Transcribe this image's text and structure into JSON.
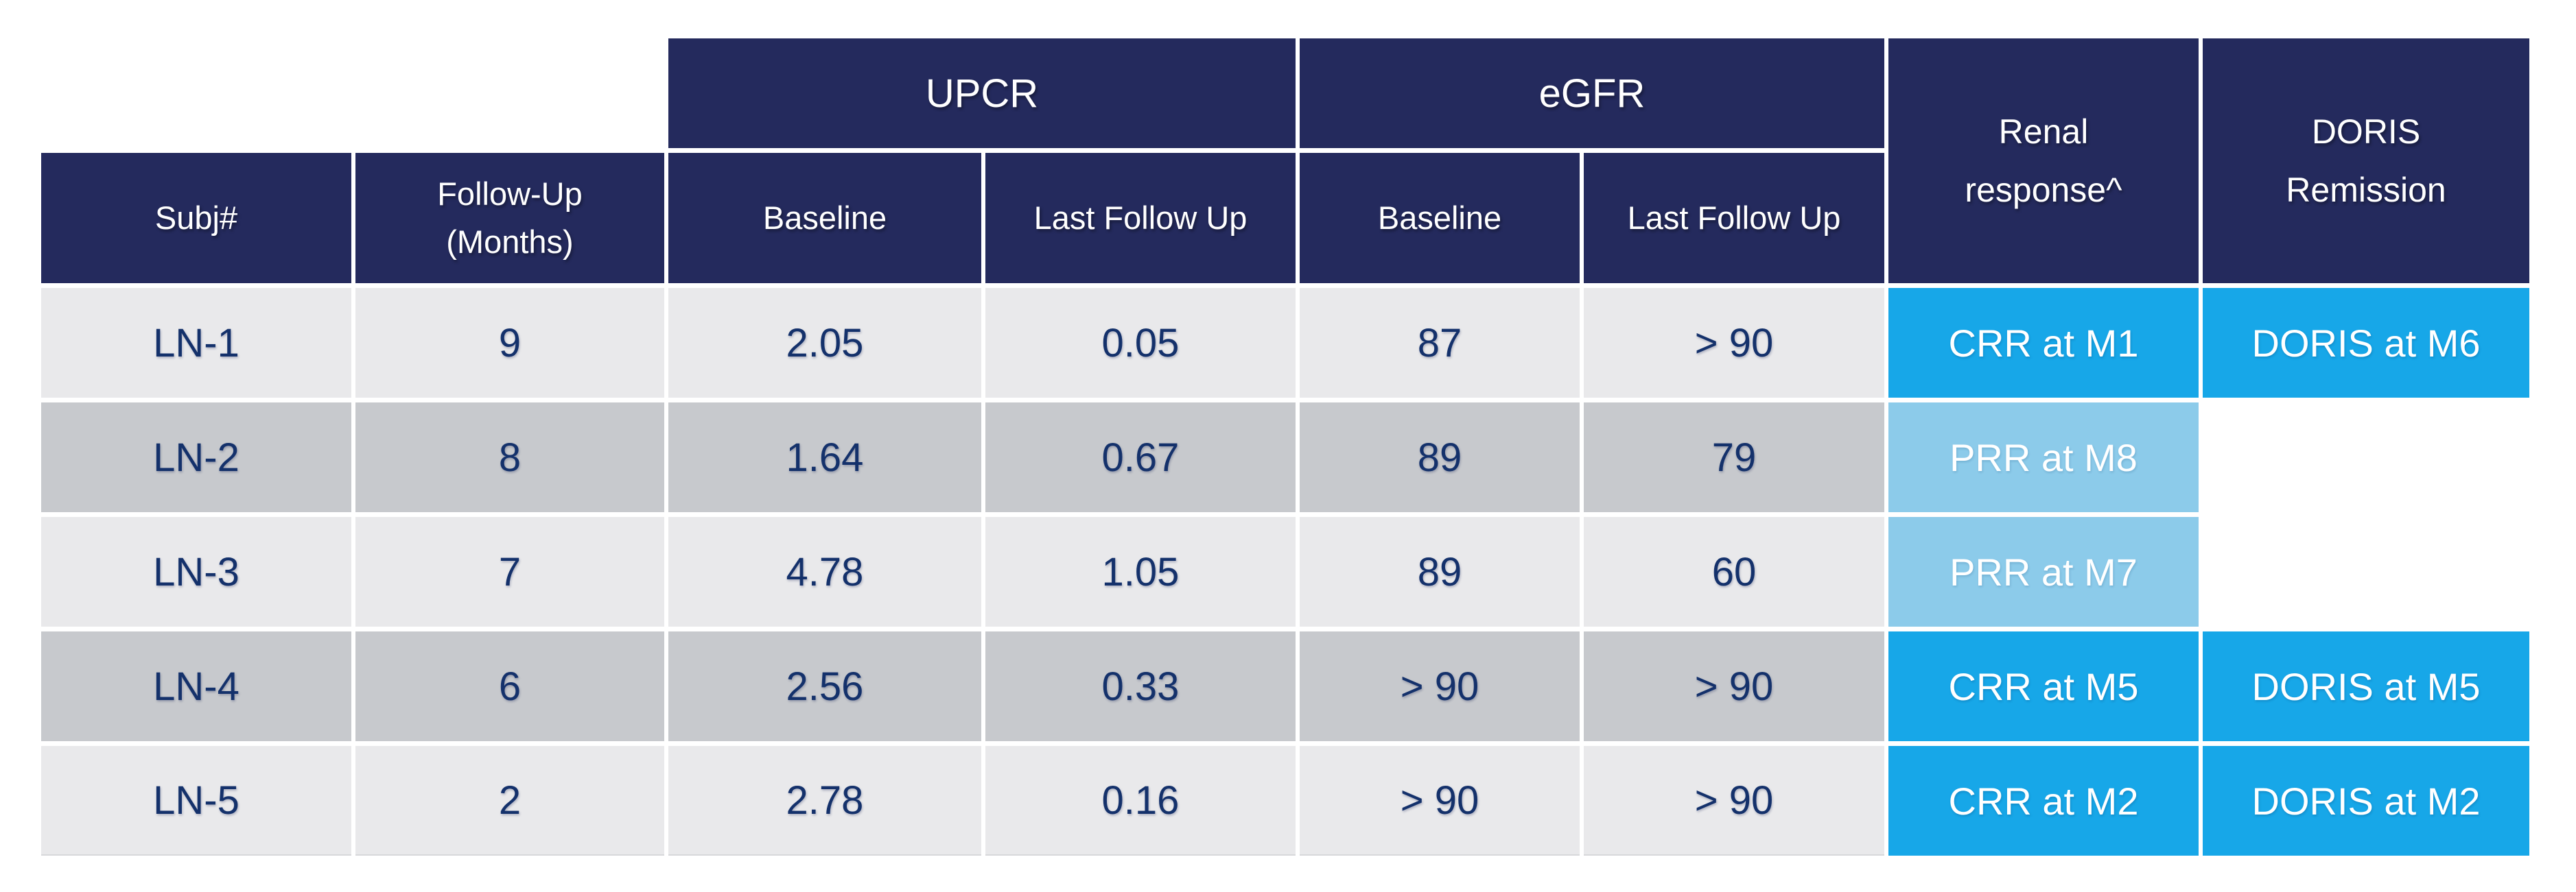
{
  "colors": {
    "navy": "#242A5D",
    "bright-blue": "#17A7E8",
    "light-blue": "#8CCBEA",
    "row-light": "#E9E9EB",
    "row-dark": "#C7C9CD",
    "text-navy": "#14316B",
    "background": "#FFFFFF"
  },
  "table": {
    "group_headers": {
      "upcr": "UPCR",
      "egfr": "eGFR"
    },
    "tall_headers": {
      "renal": {
        "lines": [
          "Renal",
          "response^"
        ]
      },
      "doris": {
        "lines": [
          "DORIS",
          "Remission"
        ]
      }
    },
    "sub_headers": {
      "subj": "Subj#",
      "followup": {
        "lines": [
          "Follow-Up",
          "(Months)"
        ]
      },
      "upcr_baseline": "Baseline",
      "upcr_last": "Last Follow Up",
      "egfr_baseline": "Baseline",
      "egfr_last": "Last Follow Up"
    },
    "rows": [
      {
        "subj": "LN-1",
        "months": "9",
        "upcr_baseline": "2.05",
        "upcr_last": "0.05",
        "egfr_baseline": "87",
        "egfr_last": "> 90",
        "renal": "CRR at M1",
        "doris": "DORIS at M6"
      },
      {
        "subj": "LN-2",
        "months": "8",
        "upcr_baseline": "1.64",
        "upcr_last": "0.67",
        "egfr_baseline": "89",
        "egfr_last": "79",
        "renal": "PRR at M8",
        "doris": ""
      },
      {
        "subj": "LN-3",
        "months": "7",
        "upcr_baseline": "4.78",
        "upcr_last": "1.05",
        "egfr_baseline": "89",
        "egfr_last": "60",
        "renal": "PRR at M7",
        "doris": ""
      },
      {
        "subj": "LN-4",
        "months": "6",
        "upcr_baseline": "2.56",
        "upcr_last": "0.33",
        "egfr_baseline": "> 90",
        "egfr_last": "> 90",
        "renal": "CRR at M5",
        "doris": "DORIS at M5"
      },
      {
        "subj": "LN-5",
        "months": "2",
        "upcr_baseline": "2.78",
        "upcr_last": "0.16",
        "egfr_baseline": "> 90",
        "egfr_last": "> 90",
        "renal": "CRR at M2",
        "doris": "DORIS at M2"
      }
    ]
  }
}
